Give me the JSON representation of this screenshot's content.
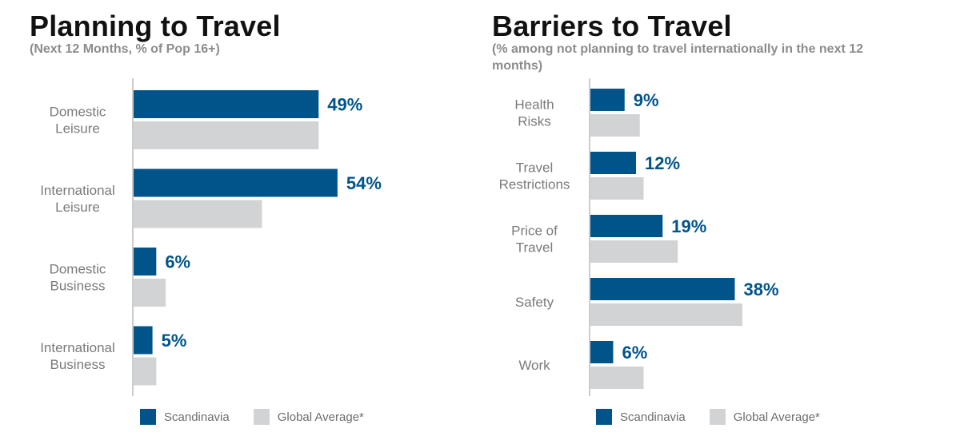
{
  "colors": {
    "scandinavia": "#00548a",
    "global_average": "#d2d3d5",
    "axis": "#9a9a9a"
  },
  "legend": {
    "scandinavia": "Scandinavia",
    "global_average": "Global Average*"
  },
  "chart_data": [
    {
      "type": "bar",
      "orientation": "horizontal",
      "title": "Planning to Travel",
      "subtitle": "(Next 12 Months, % of Pop 16+)",
      "categories": [
        [
          "Domestic",
          "Leisure"
        ],
        [
          "International",
          "Leisure"
        ],
        [
          "Domestic",
          "Business"
        ],
        [
          "International",
          "Business"
        ]
      ],
      "series": [
        {
          "name": "Scandinavia",
          "values": [
            49,
            54,
            6,
            5
          ],
          "value_labels": [
            "49%",
            "54%",
            "6%",
            "5%"
          ]
        },
        {
          "name": "Global Average*",
          "values": [
            49,
            34,
            8.5,
            6
          ]
        }
      ],
      "xlim": [
        0,
        60
      ],
      "legend_position": "bottom",
      "grid": false
    },
    {
      "type": "bar",
      "orientation": "horizontal",
      "title": "Barriers to Travel",
      "subtitle": "(% among not planning to travel internationally in the next 12 months)",
      "categories": [
        [
          "Health",
          "Risks"
        ],
        [
          "Travel",
          "Restrictions"
        ],
        [
          "Price of",
          "Travel"
        ],
        [
          "Safety"
        ],
        [
          "Work"
        ]
      ],
      "series": [
        {
          "name": "Scandinavia",
          "values": [
            9,
            12,
            19,
            38,
            6
          ],
          "value_labels": [
            "9%",
            "12%",
            "19%",
            "38%",
            "6%"
          ]
        },
        {
          "name": "Global Average*",
          "values": [
            13,
            14,
            23,
            40,
            14
          ]
        }
      ],
      "xlim": [
        0,
        60
      ],
      "legend_position": "bottom",
      "grid": false
    }
  ]
}
